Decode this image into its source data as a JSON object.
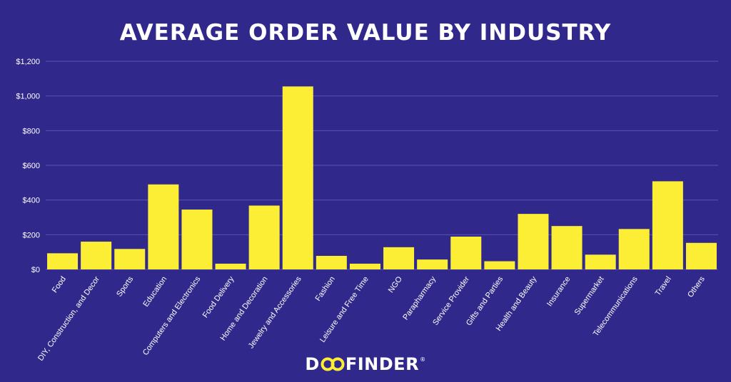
{
  "chart_data": {
    "type": "bar",
    "title": "AVERAGE ORDER VALUE BY INDUSTRY",
    "xlabel": "",
    "ylabel": "",
    "ylim": [
      0,
      1200
    ],
    "yticks": [
      0,
      200,
      400,
      600,
      800,
      1000,
      1200
    ],
    "ytick_labels": [
      "$0",
      "$200",
      "$400",
      "$600",
      "$800",
      "$1,000",
      "$1,200"
    ],
    "grid": true,
    "categories": [
      "Food",
      "DIY, Construction, and Decor",
      "Sports",
      "Education",
      "Computers and Electronics",
      "Food Delivery",
      "Home and Decoration",
      "Jewelry and Accessories",
      "Fashion",
      "Leisure and Free Time",
      "NGO",
      "Parapharmacy",
      "Service Provider",
      "Gifts and Parties",
      "Health and Beauty",
      "Insurance",
      "Supermarket",
      "Telecommunications",
      "Travel",
      "Others"
    ],
    "values": [
      93,
      160,
      118,
      490,
      345,
      33,
      368,
      1055,
      78,
      33,
      128,
      57,
      189,
      47,
      320,
      250,
      85,
      233,
      508,
      153
    ]
  },
  "colors": {
    "background": "#31288c",
    "bar": "#fcee34",
    "grid": "#5a53a8",
    "text": "#ffffff"
  },
  "brand": {
    "pre": "D",
    "post": "FINDER",
    "mark": "®"
  }
}
